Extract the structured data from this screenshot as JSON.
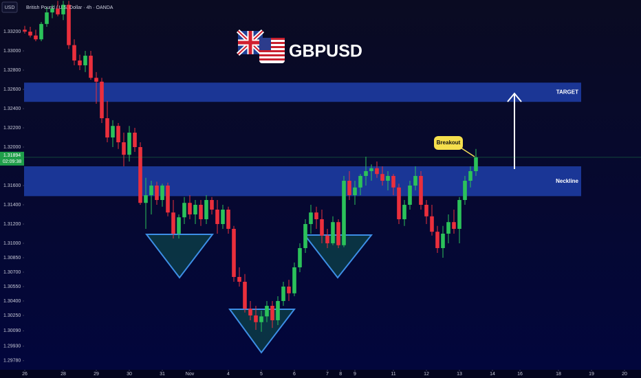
{
  "chart_data": {
    "type": "candlestick",
    "header": "British Pound / U.S. Dollar · 4h · OANDA",
    "currency": "USD",
    "title": "GBPUSD",
    "up_color": "#2bc25a",
    "down_color": "#ea2f3c",
    "ylim": [
      1.29671,
      1.33529
    ],
    "yticks": [
      {
        "value": 1.332,
        "label": "1.33200"
      },
      {
        "value": 1.33,
        "label": "1.33000"
      },
      {
        "value": 1.328,
        "label": "1.32800"
      },
      {
        "value": 1.326,
        "label": "1.32600"
      },
      {
        "value": 1.324,
        "label": "1.32400"
      },
      {
        "value": 1.322,
        "label": "1.32200"
      },
      {
        "value": 1.32,
        "label": "1.32000"
      },
      {
        "value": 1.316,
        "label": "1.31600"
      },
      {
        "value": 1.314,
        "label": "1.31400"
      },
      {
        "value": 1.312,
        "label": "1.31200"
      },
      {
        "value": 1.31,
        "label": "1.31000"
      },
      {
        "value": 1.3085,
        "label": "1.30850"
      },
      {
        "value": 1.307,
        "label": "1.30700"
      },
      {
        "value": 1.3055,
        "label": "1.30550"
      },
      {
        "value": 1.304,
        "label": "1.30400"
      },
      {
        "value": 1.3025,
        "label": "1.30250"
      },
      {
        "value": 1.3009,
        "label": "1.30090"
      },
      {
        "value": 1.2993,
        "label": "1.29930"
      },
      {
        "value": 1.2978,
        "label": "1.29780"
      }
    ],
    "xlim": [
      -4.5,
      110.5
    ],
    "xticks": [
      {
        "value": 0,
        "label": "26"
      },
      {
        "value": 7,
        "label": "28"
      },
      {
        "value": 13,
        "label": "29"
      },
      {
        "value": 19,
        "label": "30"
      },
      {
        "value": 25,
        "label": "31"
      },
      {
        "value": 30,
        "label": "Nov"
      },
      {
        "value": 37,
        "label": "4"
      },
      {
        "value": 43,
        "label": "5"
      },
      {
        "value": 49,
        "label": "6"
      },
      {
        "value": 55,
        "label": "7"
      },
      {
        "value": 57.4,
        "label": "8"
      },
      {
        "value": 60,
        "label": "9"
      },
      {
        "value": 67,
        "label": "11"
      },
      {
        "value": 73,
        "label": "12"
      },
      {
        "value": 79,
        "label": "13"
      },
      {
        "value": 85,
        "label": "14"
      },
      {
        "value": 90,
        "label": "16"
      },
      {
        "value": 97,
        "label": "18"
      },
      {
        "value": 103,
        "label": "19"
      },
      {
        "value": 109,
        "label": "20"
      }
    ],
    "last_price": 1.31894,
    "countdown": "02:09:38",
    "zones": [
      {
        "label": "TARGET",
        "range": [
          1.3247,
          1.3267
        ]
      },
      {
        "label": "Neckline",
        "range": [
          1.3149,
          1.318
        ]
      }
    ],
    "annotation": "Breakout",
    "candles": [
      {
        "open": 1.3322,
        "high": 1.3326,
        "low": 1.3318,
        "close": 1.332
      },
      {
        "open": 1.332,
        "high": 1.3325,
        "low": 1.3314,
        "close": 1.3316
      },
      {
        "open": 1.3316,
        "high": 1.3322,
        "low": 1.331,
        "close": 1.3312
      },
      {
        "open": 1.3312,
        "high": 1.333,
        "low": 1.331,
        "close": 1.3328
      },
      {
        "open": 1.3328,
        "high": 1.3345,
        "low": 1.3325,
        "close": 1.334
      },
      {
        "open": 1.334,
        "high": 1.3348,
        "low": 1.3334,
        "close": 1.3344
      },
      {
        "open": 1.3344,
        "high": 1.3352,
        "low": 1.3336,
        "close": 1.3338
      },
      {
        "open": 1.3338,
        "high": 1.3352,
        "low": 1.3332,
        "close": 1.3348
      },
      {
        "open": 1.3348,
        "high": 1.3352,
        "low": 1.3302,
        "close": 1.3306
      },
      {
        "open": 1.3306,
        "high": 1.3312,
        "low": 1.3285,
        "close": 1.329
      },
      {
        "open": 1.329,
        "high": 1.3296,
        "low": 1.328,
        "close": 1.3285
      },
      {
        "open": 1.3285,
        "high": 1.33,
        "low": 1.3278,
        "close": 1.3295
      },
      {
        "open": 1.3295,
        "high": 1.33,
        "low": 1.327,
        "close": 1.3272
      },
      {
        "open": 1.3272,
        "high": 1.3278,
        "low": 1.3245,
        "close": 1.3268
      },
      {
        "open": 1.3268,
        "high": 1.3272,
        "low": 1.3225,
        "close": 1.323
      },
      {
        "open": 1.323,
        "high": 1.3248,
        "low": 1.3205,
        "close": 1.321
      },
      {
        "open": 1.321,
        "high": 1.3228,
        "low": 1.32,
        "close": 1.3222
      },
      {
        "open": 1.3222,
        "high": 1.3225,
        "low": 1.3198,
        "close": 1.3205
      },
      {
        "open": 1.3205,
        "high": 1.3215,
        "low": 1.318,
        "close": 1.3192
      },
      {
        "open": 1.3192,
        "high": 1.3222,
        "low": 1.3185,
        "close": 1.3215
      },
      {
        "open": 1.3215,
        "high": 1.322,
        "low": 1.3195,
        "close": 1.32
      },
      {
        "open": 1.32,
        "high": 1.3205,
        "low": 1.314,
        "close": 1.3142
      },
      {
        "open": 1.3142,
        "high": 1.3168,
        "low": 1.3115,
        "close": 1.315
      },
      {
        "open": 1.315,
        "high": 1.3165,
        "low": 1.313,
        "close": 1.316
      },
      {
        "open": 1.316,
        "high": 1.3164,
        "low": 1.314,
        "close": 1.3145
      },
      {
        "open": 1.3145,
        "high": 1.3162,
        "low": 1.3138,
        "close": 1.316
      },
      {
        "open": 1.316,
        "high": 1.3163,
        "low": 1.3128,
        "close": 1.3132
      },
      {
        "open": 1.3132,
        "high": 1.3145,
        "low": 1.3105,
        "close": 1.311
      },
      {
        "open": 1.311,
        "high": 1.313,
        "low": 1.3105,
        "close": 1.3127
      },
      {
        "open": 1.3127,
        "high": 1.3148,
        "low": 1.312,
        "close": 1.3142
      },
      {
        "open": 1.3142,
        "high": 1.315,
        "low": 1.3125,
        "close": 1.313
      },
      {
        "open": 1.313,
        "high": 1.3145,
        "low": 1.312,
        "close": 1.314
      },
      {
        "open": 1.314,
        "high": 1.3145,
        "low": 1.3118,
        "close": 1.3125
      },
      {
        "open": 1.3125,
        "high": 1.315,
        "low": 1.312,
        "close": 1.3145
      },
      {
        "open": 1.3145,
        "high": 1.3148,
        "low": 1.313,
        "close": 1.3135
      },
      {
        "open": 1.3135,
        "high": 1.3145,
        "low": 1.311,
        "close": 1.312
      },
      {
        "open": 1.312,
        "high": 1.314,
        "low": 1.3115,
        "close": 1.3135
      },
      {
        "open": 1.3135,
        "high": 1.3138,
        "low": 1.311,
        "close": 1.3115
      },
      {
        "open": 1.3115,
        "high": 1.3118,
        "low": 1.306,
        "close": 1.3065
      },
      {
        "open": 1.3065,
        "high": 1.3075,
        "low": 1.3055,
        "close": 1.306
      },
      {
        "open": 1.306,
        "high": 1.3068,
        "low": 1.3028,
        "close": 1.3032
      },
      {
        "open": 1.3032,
        "high": 1.304,
        "low": 1.302,
        "close": 1.3025
      },
      {
        "open": 1.3025,
        "high": 1.3035,
        "low": 1.301,
        "close": 1.3018
      },
      {
        "open": 1.3018,
        "high": 1.303,
        "low": 1.3008,
        "close": 1.3024
      },
      {
        "open": 1.3024,
        "high": 1.304,
        "low": 1.3018,
        "close": 1.3035
      },
      {
        "open": 1.3035,
        "high": 1.304,
        "low": 1.3012,
        "close": 1.302
      },
      {
        "open": 1.302,
        "high": 1.3045,
        "low": 1.3015,
        "close": 1.304
      },
      {
        "open": 1.304,
        "high": 1.306,
        "low": 1.3035,
        "close": 1.3055
      },
      {
        "open": 1.3055,
        "high": 1.3062,
        "low": 1.304,
        "close": 1.3048
      },
      {
        "open": 1.3048,
        "high": 1.308,
        "low": 1.3045,
        "close": 1.3075
      },
      {
        "open": 1.3075,
        "high": 1.31,
        "low": 1.307,
        "close": 1.3095
      },
      {
        "open": 1.3095,
        "high": 1.3125,
        "low": 1.309,
        "close": 1.312
      },
      {
        "open": 1.312,
        "high": 1.314,
        "low": 1.311,
        "close": 1.3132
      },
      {
        "open": 1.3132,
        "high": 1.3138,
        "low": 1.3115,
        "close": 1.3125
      },
      {
        "open": 1.3125,
        "high": 1.3135,
        "low": 1.31,
        "close": 1.3108
      },
      {
        "open": 1.3108,
        "high": 1.3115,
        "low": 1.3095,
        "close": 1.31
      },
      {
        "open": 1.31,
        "high": 1.3128,
        "low": 1.3098,
        "close": 1.3122
      },
      {
        "open": 1.3122,
        "high": 1.3125,
        "low": 1.3095,
        "close": 1.3098
      },
      {
        "open": 1.3098,
        "high": 1.317,
        "low": 1.3096,
        "close": 1.3165
      },
      {
        "open": 1.3165,
        "high": 1.3175,
        "low": 1.3145,
        "close": 1.315
      },
      {
        "open": 1.315,
        "high": 1.3165,
        "low": 1.314,
        "close": 1.3158
      },
      {
        "open": 1.3158,
        "high": 1.3172,
        "low": 1.315,
        "close": 1.317
      },
      {
        "open": 1.317,
        "high": 1.319,
        "low": 1.316,
        "close": 1.3175
      },
      {
        "open": 1.3175,
        "high": 1.3182,
        "low": 1.3165,
        "close": 1.3178
      },
      {
        "open": 1.3178,
        "high": 1.3185,
        "low": 1.3168,
        "close": 1.3172
      },
      {
        "open": 1.3172,
        "high": 1.318,
        "low": 1.316,
        "close": 1.3165
      },
      {
        "open": 1.3165,
        "high": 1.3175,
        "low": 1.3155,
        "close": 1.317
      },
      {
        "open": 1.317,
        "high": 1.3172,
        "low": 1.315,
        "close": 1.3158
      },
      {
        "open": 1.3158,
        "high": 1.3162,
        "low": 1.312,
        "close": 1.3125
      },
      {
        "open": 1.3125,
        "high": 1.3145,
        "low": 1.3118,
        "close": 1.314
      },
      {
        "open": 1.314,
        "high": 1.3165,
        "low": 1.3135,
        "close": 1.316
      },
      {
        "open": 1.316,
        "high": 1.318,
        "low": 1.3155,
        "close": 1.317
      },
      {
        "open": 1.317,
        "high": 1.3175,
        "low": 1.3135,
        "close": 1.314
      },
      {
        "open": 1.314,
        "high": 1.3145,
        "low": 1.312,
        "close": 1.3128
      },
      {
        "open": 1.3128,
        "high": 1.314,
        "low": 1.3108,
        "close": 1.3112
      },
      {
        "open": 1.3112,
        "high": 1.3118,
        "low": 1.309,
        "close": 1.3095
      },
      {
        "open": 1.3095,
        "high": 1.3118,
        "low": 1.3085,
        "close": 1.311
      },
      {
        "open": 1.311,
        "high": 1.313,
        "low": 1.31,
        "close": 1.3122
      },
      {
        "open": 1.3122,
        "high": 1.3135,
        "low": 1.311,
        "close": 1.3115
      },
      {
        "open": 1.3115,
        "high": 1.3148,
        "low": 1.31,
        "close": 1.3145
      },
      {
        "open": 1.3145,
        "high": 1.317,
        "low": 1.314,
        "close": 1.3165
      },
      {
        "open": 1.3165,
        "high": 1.318,
        "low": 1.3158,
        "close": 1.3175
      },
      {
        "open": 1.3175,
        "high": 1.3198,
        "low": 1.317,
        "close": 1.31894
      }
    ]
  }
}
